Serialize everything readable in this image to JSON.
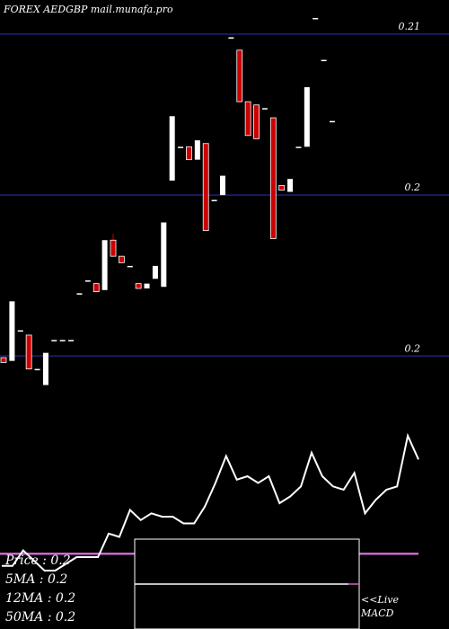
{
  "header": {
    "title": "FOREX  AEDGBP mail.munafa.pro"
  },
  "stats": {
    "price": "Price  : 0.2",
    "ma5": "5MA : 0.2",
    "ma12": "12MA : 0.2",
    "ma50": "50MA : 0.2"
  },
  "live": {
    "line1": "<<Live",
    "line2": "MACD"
  },
  "colors": {
    "background": "#000000",
    "up": "#ffffff",
    "down": "#cc0000",
    "grid": "#1a1a5e",
    "macd_signal": "#cc66cc"
  },
  "chart_data": {
    "type": "candlestick",
    "ylim": [
      0.1985,
      0.2105
    ],
    "ytick_values": [
      0.21,
      0.205,
      0.2
    ],
    "ytick_labels": [
      "0.21",
      "0.2",
      "0.2"
    ],
    "candles": [
      {
        "o": 0.19995,
        "h": 0.19995,
        "l": 0.1998,
        "c": 0.1998
      },
      {
        "o": 0.19985,
        "h": 0.2017,
        "l": 0.19985,
        "c": 0.2017
      },
      {
        "o": 0.2008,
        "h": 0.2008,
        "l": 0.2008,
        "c": 0.2008
      },
      {
        "o": 0.20065,
        "h": 0.20065,
        "l": 0.1996,
        "c": 0.1996
      },
      {
        "o": 0.1996,
        "h": 0.1996,
        "l": 0.1996,
        "c": 0.1996
      },
      {
        "o": 0.1991,
        "h": 0.2001,
        "l": 0.1991,
        "c": 0.2001
      },
      {
        "o": 0.2005,
        "h": 0.2005,
        "l": 0.2005,
        "c": 0.2005
      },
      {
        "o": 0.2005,
        "h": 0.2005,
        "l": 0.2005,
        "c": 0.2005
      },
      {
        "o": 0.2005,
        "h": 0.2005,
        "l": 0.2005,
        "c": 0.2005
      },
      {
        "o": 0.20195,
        "h": 0.20195,
        "l": 0.20195,
        "c": 0.20195
      },
      {
        "o": 0.20235,
        "h": 0.20235,
        "l": 0.20235,
        "c": 0.20235
      },
      {
        "o": 0.20225,
        "h": 0.20225,
        "l": 0.202,
        "c": 0.202
      },
      {
        "o": 0.20205,
        "h": 0.2036,
        "l": 0.20205,
        "c": 0.2036
      },
      {
        "o": 0.2036,
        "h": 0.2038,
        "l": 0.2031,
        "c": 0.2031
      },
      {
        "o": 0.2031,
        "h": 0.2031,
        "l": 0.2029,
        "c": 0.2029
      },
      {
        "o": 0.2028,
        "h": 0.2028,
        "l": 0.2028,
        "c": 0.2028
      },
      {
        "o": 0.20225,
        "h": 0.20225,
        "l": 0.2021,
        "c": 0.2021
      },
      {
        "o": 0.2021,
        "h": 0.20225,
        "l": 0.2021,
        "c": 0.20225
      },
      {
        "o": 0.2024,
        "h": 0.2028,
        "l": 0.2024,
        "c": 0.2028
      },
      {
        "o": 0.20215,
        "h": 0.20415,
        "l": 0.20215,
        "c": 0.20415
      },
      {
        "o": 0.20545,
        "h": 0.20745,
        "l": 0.20545,
        "c": 0.20745
      },
      {
        "o": 0.2065,
        "h": 0.2065,
        "l": 0.2065,
        "c": 0.2065
      },
      {
        "o": 0.2065,
        "h": 0.2065,
        "l": 0.2061,
        "c": 0.2061
      },
      {
        "o": 0.2061,
        "h": 0.2067,
        "l": 0.2061,
        "c": 0.2067
      },
      {
        "o": 0.2066,
        "h": 0.2066,
        "l": 0.2039,
        "c": 0.2039
      },
      {
        "o": 0.20485,
        "h": 0.20485,
        "l": 0.20485,
        "c": 0.20485
      },
      {
        "o": 0.205,
        "h": 0.2056,
        "l": 0.205,
        "c": 0.2056
      },
      {
        "o": 0.2099,
        "h": 0.2099,
        "l": 0.2099,
        "c": 0.2099
      },
      {
        "o": 0.2095,
        "h": 0.2095,
        "l": 0.2079,
        "c": 0.2079
      },
      {
        "o": 0.2079,
        "h": 0.2079,
        "l": 0.20685,
        "c": 0.20685
      },
      {
        "o": 0.2078,
        "h": 0.2078,
        "l": 0.20675,
        "c": 0.20675
      },
      {
        "o": 0.2077,
        "h": 0.2077,
        "l": 0.2077,
        "c": 0.2077
      },
      {
        "o": 0.2074,
        "h": 0.2074,
        "l": 0.20365,
        "c": 0.20365
      },
      {
        "o": 0.2053,
        "h": 0.2053,
        "l": 0.20515,
        "c": 0.20515
      },
      {
        "o": 0.2051,
        "h": 0.2055,
        "l": 0.2051,
        "c": 0.2055
      },
      {
        "o": 0.2065,
        "h": 0.2065,
        "l": 0.2065,
        "c": 0.2065
      },
      {
        "o": 0.2065,
        "h": 0.20835,
        "l": 0.2065,
        "c": 0.20835
      },
      {
        "o": 0.2105,
        "h": 0.2105,
        "l": 0.2105,
        "c": 0.2105
      },
      {
        "o": 0.2092,
        "h": 0.2092,
        "l": 0.2092,
        "c": 0.2092
      },
      {
        "o": 0.2073,
        "h": 0.2073,
        "l": 0.2073,
        "c": 0.2073
      }
    ],
    "macd": [
      0.7,
      0.7,
      3.0,
      1.5,
      0.0,
      0.0,
      1.0,
      2.0,
      2.0,
      2.0,
      5.5,
      5.0,
      9.0,
      7.5,
      8.5,
      8.0,
      8.0,
      7.0,
      7.0,
      9.5,
      13.0,
      17.0,
      13.5,
      14.0,
      13.0,
      14.0,
      10.0,
      11.0,
      12.5,
      17.5,
      14.0,
      12.5,
      12.0,
      14.5,
      8.5,
      10.5,
      12.0,
      12.5,
      20.0,
      16.5
    ],
    "macd_signal": 2.5,
    "macd_ylim": [
      -2,
      22
    ]
  }
}
